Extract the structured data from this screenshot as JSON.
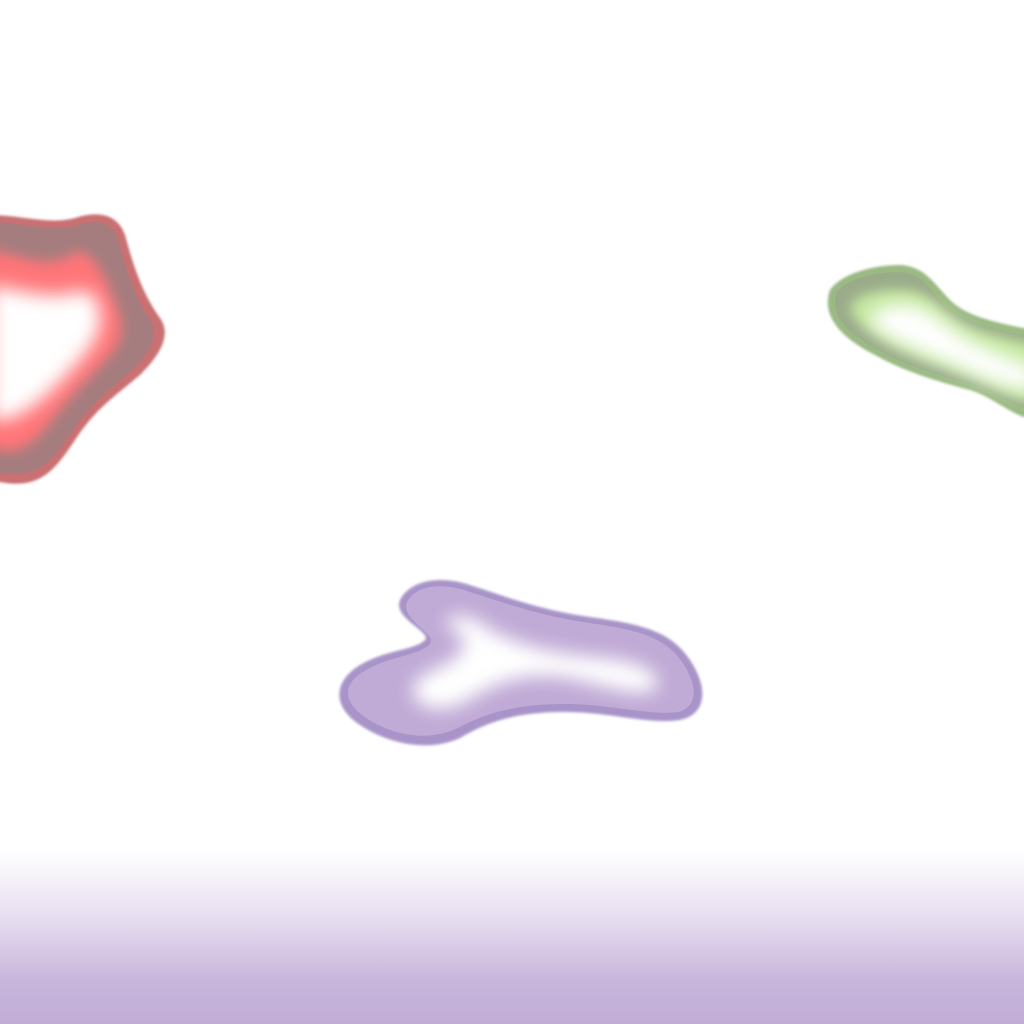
{
  "scene": {
    "background_color": "#ffffff",
    "bottom_band_color": "#c1acd6",
    "blobs": [
      {
        "name": "red-blob",
        "edge_color": "#c96f72",
        "body_color": "#a57d7e",
        "glow_color": "#ff7478",
        "core_color": "#ffffff"
      },
      {
        "name": "green-blob",
        "edge_color": "#9ab983",
        "body_color": "#9aab8a",
        "glow_color": "#c4e89e",
        "core_color": "#ffffff"
      },
      {
        "name": "purple-blob",
        "edge_color": "#a894c8",
        "body_color": "#c0aad6",
        "glow_color": "#c0aad6",
        "core_color": "#ffffff"
      }
    ]
  }
}
